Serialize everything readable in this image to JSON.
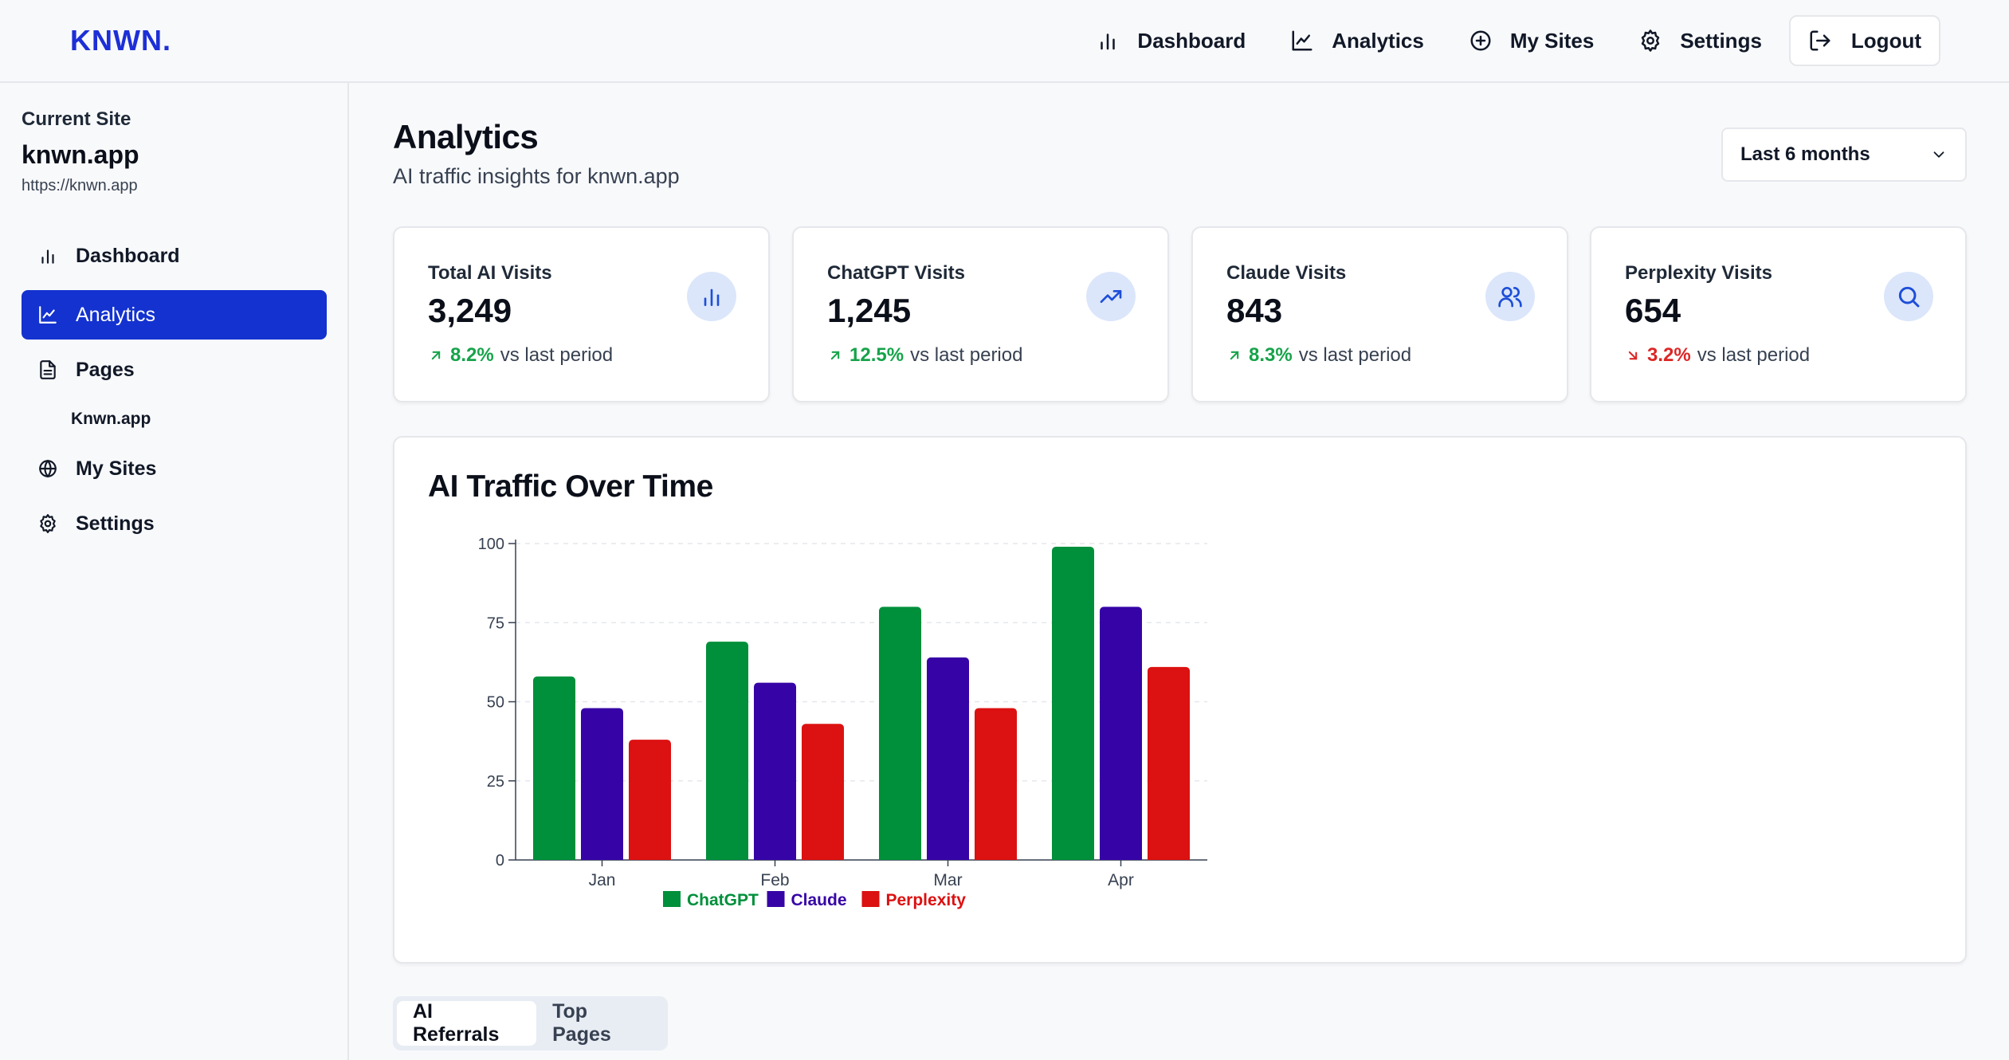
{
  "app": {
    "logo": "KNWN."
  },
  "topnav": {
    "items": [
      {
        "label": "Dashboard",
        "icon": "bar-chart-icon"
      },
      {
        "label": "Analytics",
        "icon": "line-chart-icon"
      },
      {
        "label": "My Sites",
        "icon": "plus-circle-icon"
      },
      {
        "label": "Settings",
        "icon": "gear-icon"
      }
    ],
    "logout_label": "Logout"
  },
  "sidebar": {
    "current_site_label": "Current Site",
    "site_name": "knwn.app",
    "site_url": "https://knwn.app",
    "items": [
      {
        "label": "Dashboard",
        "icon": "bar-chart-icon",
        "active": false
      },
      {
        "label": "Analytics",
        "icon": "line-chart-icon",
        "active": true
      },
      {
        "label": "Pages",
        "icon": "document-icon",
        "active": false
      },
      {
        "label": "My Sites",
        "icon": "globe-icon",
        "active": false
      },
      {
        "label": "Settings",
        "icon": "gear-icon",
        "active": false
      }
    ],
    "pages_subitem": "Knwn.app"
  },
  "header": {
    "title": "Analytics",
    "subtitle": "AI traffic insights for knwn.app",
    "range_value": "Last 6 months"
  },
  "cards": [
    {
      "title": "Total AI Visits",
      "value": "3,249",
      "change": "8.2%",
      "direction": "up",
      "suffix": "vs last period",
      "icon": "bar-chart-icon"
    },
    {
      "title": "ChatGPT Visits",
      "value": "1,245",
      "change": "12.5%",
      "direction": "up",
      "suffix": "vs last period",
      "icon": "trending-up-icon"
    },
    {
      "title": "Claude Visits",
      "value": "843",
      "change": "8.3%",
      "direction": "up",
      "suffix": "vs last period",
      "icon": "users-icon"
    },
    {
      "title": "Perplexity Visits",
      "value": "654",
      "change": "3.2%",
      "direction": "down",
      "suffix": "vs last period",
      "icon": "search-icon"
    }
  ],
  "colors": {
    "accent": "#1332cf",
    "positive": "#16a34a",
    "negative": "#dc2626",
    "chatgpt": "#008f3a",
    "claude": "#3604a6",
    "perplexity": "#dc1111"
  },
  "chart_title": "AI Traffic Over Time",
  "chart_data": {
    "type": "bar",
    "title": "AI Traffic Over Time",
    "categories": [
      "Jan",
      "Feb",
      "Mar",
      "Apr"
    ],
    "series": [
      {
        "name": "ChatGPT",
        "values": [
          58,
          69,
          80,
          99
        ]
      },
      {
        "name": "Claude",
        "values": [
          48,
          56,
          64,
          80
        ]
      },
      {
        "name": "Perplexity",
        "values": [
          38,
          43,
          48,
          61
        ]
      }
    ],
    "ylim": [
      0,
      100
    ],
    "yticks": [
      0,
      25,
      50,
      75,
      100
    ],
    "xlabel": "",
    "ylabel": "",
    "grid": true,
    "legend": "bottom"
  },
  "tabs": [
    {
      "label": "AI Referrals",
      "active": true
    },
    {
      "label": "Top Pages",
      "active": false
    }
  ]
}
